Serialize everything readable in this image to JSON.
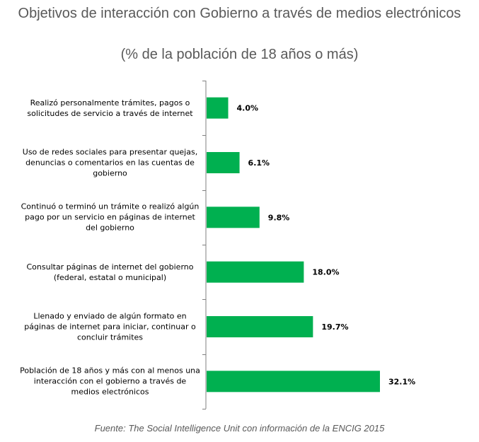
{
  "chart_data": {
    "type": "bar",
    "orientation": "horizontal",
    "title": "Objetivos de interacción con Gobierno a través de medios electrónicos",
    "subtitle": "(% de la población de 18 años o más)",
    "categories": [
      "Realizó personalmente trámites, pagos o solicitudes de servicio a través de internet",
      "Uso de redes sociales para presentar quejas, denuncias o comentarios en las cuentas de gobierno",
      "Continuó o terminó un trámite o realizó algún pago por un servicio en páginas de internet del gobierno",
      "Consultar páginas de internet del gobierno (federal, estatal o municipal)",
      "Llenado y enviado  de algún formato en páginas de internet para iniciar, continuar o concluir trámites",
      "Población de 18 años y más con al menos una interacción con el gobierno a través de medios electrónicos"
    ],
    "values": [
      4.0,
      6.1,
      9.8,
      18.0,
      19.7,
      32.1
    ],
    "data_labels": [
      "4.0%",
      "6.1%",
      "9.8%",
      "18.0%",
      "19.7%",
      "32.1%"
    ],
    "bar_color": "#00b050",
    "xlim": [
      0,
      40
    ],
    "grid": false,
    "legend": "none",
    "source": "Fuente: The Social Intelligence Unit con información de la ENCIG 2015"
  }
}
